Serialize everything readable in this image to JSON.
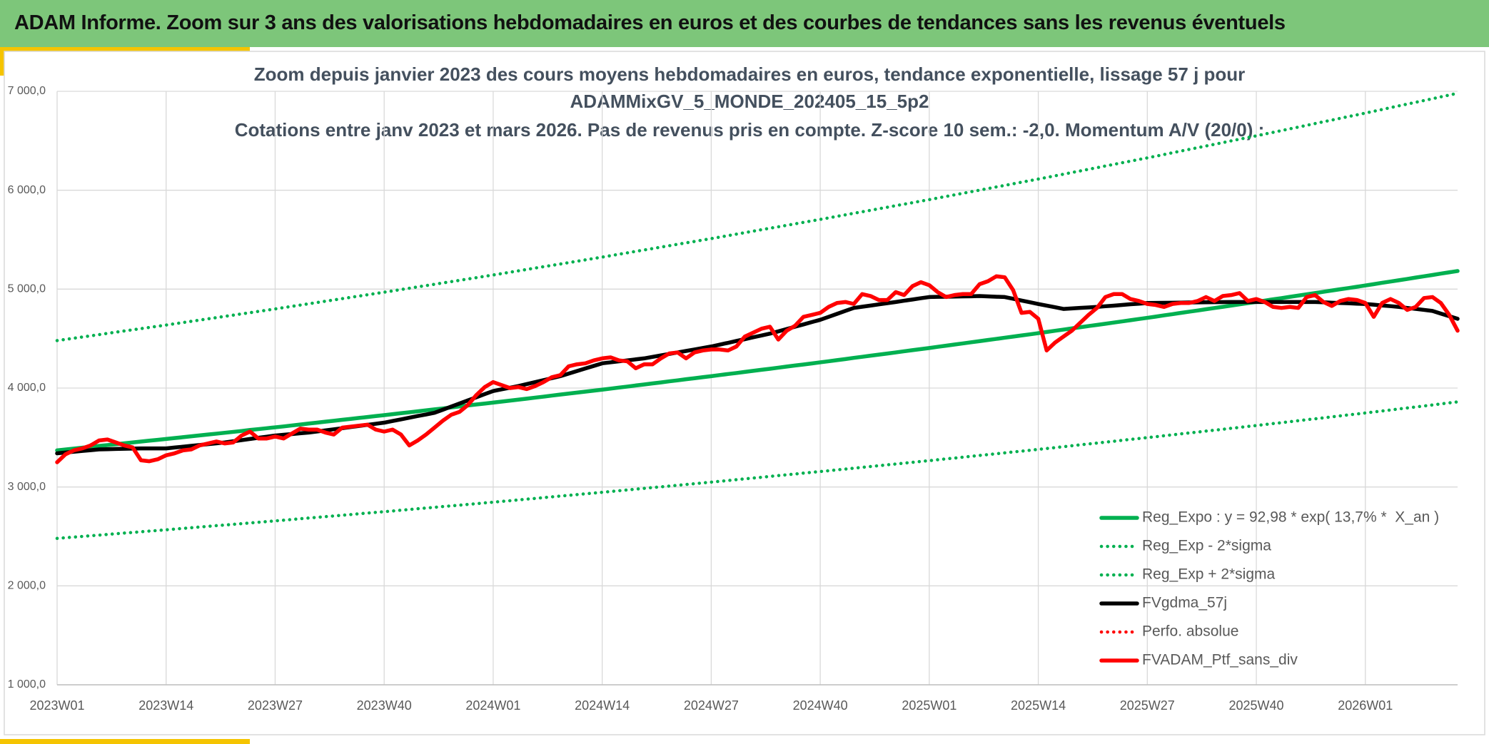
{
  "header": {
    "title": "ADAM Informe. Zoom sur 3 ans des valorisations hebdomadaires en euros et des courbes de tendances sans les revenus éventuels"
  },
  "chart_data": {
    "type": "line",
    "title": [
      "Zoom depuis janvier 2023 des cours moyens hebdomadaires en euros, tendance exponentielle, lissage 57 j pour",
      "ADAMMixGV_5_MONDE_202405_15_5p2",
      "Cotations entre janv 2023 et mars 2026. Pas de revenus pris en compte. Z-score 10 sem.: -2,0. Momentum A/V (20/0) :"
    ],
    "categories": [
      "2023W01",
      null,
      null,
      null,
      null,
      null,
      null,
      null,
      null,
      null,
      null,
      null,
      null,
      "2023W14",
      null,
      null,
      null,
      null,
      null,
      null,
      null,
      null,
      null,
      null,
      null,
      null,
      "2023W27",
      null,
      null,
      null,
      null,
      null,
      null,
      null,
      null,
      null,
      null,
      null,
      null,
      "2023W40",
      null,
      null,
      null,
      null,
      null,
      null,
      null,
      null,
      null,
      null,
      null,
      null,
      "2024W01",
      null,
      null,
      null,
      null,
      null,
      null,
      null,
      null,
      null,
      null,
      null,
      null,
      "2024W14",
      null,
      null,
      null,
      null,
      null,
      null,
      null,
      null,
      null,
      null,
      null,
      null,
      "2024W27",
      null,
      null,
      null,
      null,
      null,
      null,
      null,
      null,
      null,
      null,
      null,
      null,
      "2024W40",
      null,
      null,
      null,
      null,
      null,
      null,
      null,
      null,
      null,
      null,
      null,
      null,
      "2025W01",
      null,
      null,
      null,
      null,
      null,
      null,
      null,
      null,
      null,
      null,
      null,
      null,
      "2025W14",
      null,
      null,
      null,
      null,
      null,
      null,
      null,
      null,
      null,
      null,
      null,
      null,
      "2025W27",
      null,
      null,
      null,
      null,
      null,
      null,
      null,
      null,
      null,
      null,
      null,
      null,
      "2025W40",
      null,
      null,
      null,
      null,
      null,
      null,
      null,
      null,
      null,
      null,
      null,
      null,
      "2026W01",
      null,
      null,
      null,
      null,
      null,
      null,
      null,
      null,
      null,
      null,
      null
    ],
    "ylim": [
      1000,
      7000
    ],
    "yticks": [
      {
        "value": 1000,
        "label": "1 000,0"
      },
      {
        "value": 2000,
        "label": "2 000,0"
      },
      {
        "value": 3000,
        "label": "3 000,0"
      },
      {
        "value": 4000,
        "label": "4 000,0"
      },
      {
        "value": 5000,
        "label": "5 000,0"
      },
      {
        "value": 6000,
        "label": "6 000,0"
      },
      {
        "value": 7000,
        "label": "7 000,0"
      }
    ],
    "grid": true,
    "legend": "lower-right",
    "series": [
      {
        "name": "Reg_Expo : y = 92,98 * exp( 13,7% *  X_an )",
        "color": "#00b050",
        "line_style": "solid",
        "values": [
          3370,
          3379,
          3388,
          3397,
          3406,
          3415,
          3423,
          3432,
          3441,
          3450,
          3459,
          3468,
          3476,
          3485,
          3494,
          3503,
          3512,
          3521,
          3530,
          3539,
          3548,
          3557,
          3566,
          3576,
          3585,
          3594,
          3603,
          3612,
          3622,
          3631,
          3641,
          3650,
          3660,
          3669,
          3679,
          3688,
          3698,
          3707,
          3717,
          3726,
          3736,
          3746,
          3755,
          3765,
          3775,
          3785,
          3794,
          3804,
          3814,
          3824,
          3834,
          3843,
          3853,
          3863,
          3873,
          3883,
          3893,
          3903,
          3913,
          3924,
          3934,
          3944,
          3954,
          3964,
          3974,
          3984,
          3994,
          4005,
          4015,
          4026,
          4036,
          4047,
          4057,
          4068,
          4078,
          4089,
          4099,
          4110,
          4120,
          4131,
          4142,
          4152,
          4163,
          4174,
          4185,
          4195,
          4206,
          4217,
          4228,
          4238,
          4249,
          4260,
          4271,
          4282,
          4293,
          4305,
          4316,
          4327,
          4338,
          4349,
          4360,
          4372,
          4383,
          4394,
          4405,
          4417,
          4428,
          4440,
          4451,
          4463,
          4474,
          4486,
          4497,
          4509,
          4520,
          4532,
          4543,
          4555,
          4567,
          4579,
          4591,
          4603,
          4615,
          4627,
          4638,
          4650,
          4662,
          4674,
          4686,
          4698,
          4710,
          4722,
          4735,
          4747,
          4760,
          4772,
          4784,
          4797,
          4809,
          4821,
          4834,
          4846,
          4859,
          4871,
          4884,
          4897,
          4909,
          4922,
          4935,
          4948,
          4960,
          4973,
          4986,
          4999,
          5011,
          5024,
          5037,
          5050,
          5064,
          5077,
          5090,
          5103,
          5117,
          5130,
          5143,
          5157,
          5170,
          5183
        ]
      },
      {
        "name": "Reg_Exp - 2*sigma",
        "color": "#00b050",
        "line_style": "dotted",
        "values": [
          2480,
          2487,
          2493,
          2500,
          2507,
          2513,
          2520,
          2527,
          2534,
          2540,
          2547,
          2554,
          2560,
          2567,
          2574,
          2581,
          2588,
          2595,
          2602,
          2609,
          2615,
          2622,
          2629,
          2636,
          2643,
          2650,
          2657,
          2664,
          2671,
          2679,
          2686,
          2693,
          2700,
          2707,
          2714,
          2721,
          2729,
          2736,
          2743,
          2750,
          2757,
          2765,
          2772,
          2780,
          2787,
          2794,
          2802,
          2809,
          2816,
          2824,
          2831,
          2839,
          2846,
          2854,
          2861,
          2869,
          2877,
          2884,
          2892,
          2900,
          2908,
          2915,
          2923,
          2931,
          2938,
          2946,
          2954,
          2962,
          2970,
          2978,
          2986,
          2994,
          3001,
          3009,
          3017,
          3025,
          3033,
          3041,
          3049,
          3057,
          3065,
          3074,
          3082,
          3090,
          3098,
          3107,
          3115,
          3123,
          3131,
          3140,
          3148,
          3156,
          3164,
          3173,
          3181,
          3190,
          3198,
          3207,
          3215,
          3224,
          3232,
          3241,
          3249,
          3258,
          3266,
          3275,
          3284,
          3292,
          3301,
          3310,
          3319,
          3327,
          3336,
          3345,
          3354,
          3362,
          3371,
          3380,
          3389,
          3398,
          3407,
          3417,
          3426,
          3435,
          3444,
          3453,
          3462,
          3472,
          3481,
          3490,
          3499,
          3508,
          3518,
          3527,
          3537,
          3546,
          3555,
          3565,
          3574,
          3583,
          3593,
          3602,
          3612,
          3621,
          3631,
          3641,
          3650,
          3660,
          3670,
          3680,
          3689,
          3699,
          3709,
          3719,
          3729,
          3738,
          3748,
          3758,
          3768,
          3778,
          3789,
          3799,
          3809,
          3819,
          3829,
          3840,
          3850,
          3860
        ]
      },
      {
        "name": "Reg_Exp + 2*sigma",
        "color": "#00b050",
        "line_style": "dotted",
        "values": [
          4480,
          4492,
          4504,
          4516,
          4528,
          4540,
          4553,
          4565,
          4577,
          4589,
          4601,
          4613,
          4625,
          4637,
          4650,
          4662,
          4675,
          4687,
          4700,
          4712,
          4725,
          4737,
          4750,
          4762,
          4775,
          4787,
          4800,
          4813,
          4826,
          4839,
          4852,
          4865,
          4878,
          4891,
          4904,
          4917,
          4930,
          4943,
          4956,
          4969,
          4982,
          4996,
          5009,
          5023,
          5036,
          5049,
          5063,
          5076,
          5089,
          5103,
          5116,
          5130,
          5143,
          5157,
          5171,
          5185,
          5199,
          5213,
          5227,
          5240,
          5254,
          5268,
          5282,
          5296,
          5310,
          5324,
          5338,
          5353,
          5367,
          5382,
          5396,
          5410,
          5425,
          5439,
          5454,
          5468,
          5482,
          5497,
          5511,
          5526,
          5541,
          5556,
          5571,
          5586,
          5601,
          5616,
          5630,
          5645,
          5660,
          5675,
          5690,
          5705,
          5720,
          5736,
          5751,
          5767,
          5782,
          5797,
          5813,
          5828,
          5844,
          5859,
          5874,
          5890,
          5905,
          5921,
          5937,
          5953,
          5969,
          5985,
          6001,
          6017,
          6033,
          6049,
          6065,
          6081,
          6097,
          6113,
          6129,
          6146,
          6162,
          6179,
          6195,
          6212,
          6228,
          6245,
          6261,
          6278,
          6294,
          6311,
          6327,
          6344,
          6361,
          6379,
          6396,
          6413,
          6430,
          6447,
          6464,
          6481,
          6499,
          6516,
          6533,
          6550,
          6568,
          6585,
          6603,
          6621,
          6638,
          6656,
          6674,
          6692,
          6709,
          6727,
          6745,
          6762,
          6780,
          6798,
          6816,
          6835,
          6853,
          6871,
          6889,
          6907,
          6925,
          6944,
          6962,
          6980
        ]
      },
      {
        "name": "FVgdma_57j",
        "color": "#000000",
        "line_style": "solid",
        "values": [
          3340,
          3348,
          3356,
          3364,
          3372,
          3380,
          3382,
          3384,
          3386,
          3388,
          3390,
          3390,
          3390,
          3390,
          3399,
          3407,
          3416,
          3424,
          3433,
          3441,
          3450,
          3462,
          3473,
          3485,
          3497,
          3508,
          3520,
          3528,
          3535,
          3543,
          3550,
          3561,
          3572,
          3583,
          3594,
          3606,
          3617,
          3628,
          3639,
          3650,
          3667,
          3683,
          3700,
          3717,
          3733,
          3750,
          3781,
          3813,
          3844,
          3876,
          3907,
          3939,
          3970,
          3987,
          4003,
          4020,
          4040,
          4060,
          4080,
          4100,
          4120,
          4146,
          4172,
          4198,
          4224,
          4250,
          4260,
          4270,
          4280,
          4290,
          4300,
          4315,
          4330,
          4345,
          4360,
          4375,
          4390,
          4405,
          4420,
          4439,
          4457,
          4476,
          4494,
          4513,
          4531,
          4550,
          4573,
          4597,
          4620,
          4643,
          4667,
          4690,
          4720,
          4750,
          4780,
          4810,
          4822,
          4834,
          4846,
          4858,
          4870,
          4883,
          4895,
          4908,
          4920,
          4922,
          4923,
          4925,
          4927,
          4928,
          4930,
          4927,
          4923,
          4920,
          4903,
          4885,
          4868,
          4850,
          4833,
          4817,
          4800,
          4805,
          4810,
          4815,
          4820,
          4827,
          4833,
          4840,
          4847,
          4853,
          4860,
          4861,
          4862,
          4863,
          4864,
          4865,
          4866,
          4867,
          4868,
          4869,
          4870,
          4870,
          4870,
          4870,
          4870,
          4870,
          4870,
          4870,
          4870,
          4870,
          4870,
          4867,
          4863,
          4860,
          4857,
          4853,
          4850,
          4843,
          4835,
          4828,
          4820,
          4810,
          4800,
          4790,
          4780,
          4753,
          4727,
          4700
        ]
      },
      {
        "name": "Perfo. absolue",
        "color": "#ff0000",
        "line_style": "dotted"
      },
      {
        "name": "FVADAM_Ptf_sans_div",
        "color": "#ff0000",
        "line_style": "solid",
        "values": [
          3250,
          3330,
          3370,
          3390,
          3420,
          3470,
          3480,
          3450,
          3420,
          3400,
          3270,
          3260,
          3280,
          3320,
          3340,
          3370,
          3380,
          3420,
          3440,
          3460,
          3440,
          3450,
          3520,
          3560,
          3490,
          3490,
          3510,
          3490,
          3540,
          3590,
          3580,
          3580,
          3550,
          3530,
          3600,
          3610,
          3620,
          3630,
          3580,
          3560,
          3580,
          3530,
          3420,
          3470,
          3530,
          3600,
          3670,
          3730,
          3760,
          3830,
          3930,
          4010,
          4060,
          4030,
          4000,
          4010,
          3990,
          4020,
          4060,
          4110,
          4130,
          4220,
          4240,
          4250,
          4280,
          4300,
          4310,
          4280,
          4270,
          4200,
          4240,
          4240,
          4300,
          4350,
          4360,
          4300,
          4360,
          4380,
          4390,
          4390,
          4380,
          4420,
          4520,
          4560,
          4600,
          4620,
          4490,
          4580,
          4630,
          4720,
          4740,
          4760,
          4820,
          4860,
          4870,
          4850,
          4950,
          4930,
          4890,
          4890,
          4970,
          4940,
          5030,
          5070,
          5040,
          4970,
          4920,
          4940,
          4950,
          4950,
          5050,
          5080,
          5130,
          5120,
          4990,
          4760,
          4770,
          4700,
          4380,
          4460,
          4520,
          4580,
          4660,
          4740,
          4810,
          4920,
          4950,
          4950,
          4900,
          4880,
          4850,
          4840,
          4820,
          4850,
          4860,
          4860,
          4880,
          4920,
          4880,
          4930,
          4940,
          4960,
          4880,
          4900,
          4870,
          4820,
          4810,
          4820,
          4810,
          4920,
          4940,
          4870,
          4830,
          4880,
          4900,
          4890,
          4860,
          4720,
          4860,
          4900,
          4860,
          4790,
          4820,
          4910,
          4920,
          4860,
          4740,
          4580
        ]
      }
    ]
  }
}
